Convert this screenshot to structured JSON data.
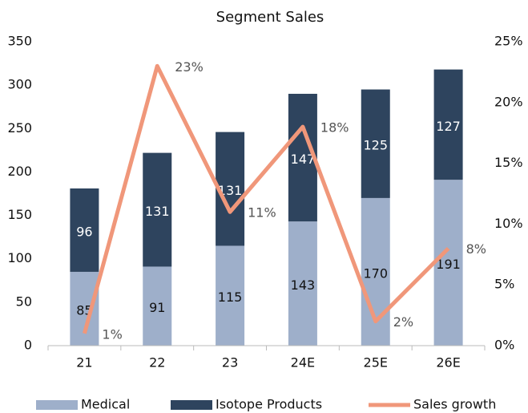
{
  "chart_data": {
    "type": "bar",
    "stacked": true,
    "title": "Segment Sales",
    "categories": [
      "21",
      "22",
      "23",
      "24E",
      "25E",
      "26E"
    ],
    "series": [
      {
        "name": "Medical",
        "color": "#9eafca",
        "values": [
          85,
          91,
          115,
          143,
          170,
          191
        ]
      },
      {
        "name": "Isotope Products",
        "color": "#2e445e",
        "values": [
          96,
          131,
          131,
          147,
          125,
          127
        ]
      },
      {
        "name": "Sales growth",
        "type": "line",
        "axis": "y2",
        "color": "#f0977a",
        "values": [
          1,
          23,
          11,
          18,
          2,
          8
        ],
        "value_labels": [
          "1%",
          "23%",
          "11%",
          "18%",
          "2%",
          "8%"
        ]
      }
    ],
    "ylim": [
      0,
      350
    ],
    "yticks": [
      0,
      50,
      100,
      150,
      200,
      250,
      300,
      350
    ],
    "y2lim": [
      0,
      25
    ],
    "y2ticks": [
      {
        "value": 0,
        "label": "0%"
      },
      {
        "value": 5,
        "label": "5%"
      },
      {
        "value": 10,
        "label": "10%"
      },
      {
        "value": 15,
        "label": "15%"
      },
      {
        "value": 20,
        "label": "20%"
      },
      {
        "value": 25,
        "label": "25%"
      }
    ],
    "grid": false,
    "legend": "bottom"
  }
}
